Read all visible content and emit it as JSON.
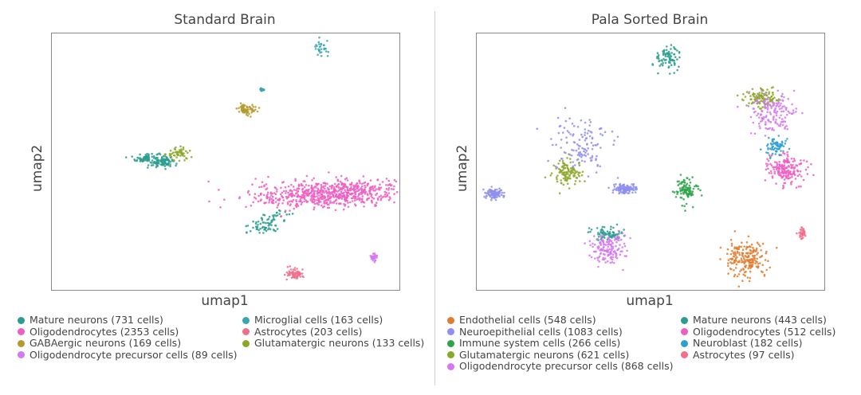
{
  "chart_data": [
    {
      "type": "scatter",
      "title": "Standard Brain",
      "xlabel": "umap1",
      "ylabel": "umap2",
      "grid": false,
      "legend_placement": "bottom",
      "series": [
        {
          "name": "Mature neurons (731 cells)",
          "color": "#2a9d8f",
          "clusters": [
            {
              "x": 5.5,
              "y": 8.2,
              "sx": 0.35,
              "sy": 0.2
            },
            {
              "x": 6.4,
              "y": 8.0,
              "sx": 0.3,
              "sy": 0.15
            },
            {
              "x": 12.5,
              "y": 4.2,
              "sx": 0.7,
              "sy": 0.25,
              "tilt": 0.45
            }
          ],
          "n": 240
        },
        {
          "name": "Microglial cells (163 cells)",
          "color": "#3aa6b2",
          "clusters": [
            {
              "x": 15.5,
              "y": 15.0,
              "sx": 0.2,
              "sy": 0.25
            },
            {
              "x": 12.1,
              "y": 12.5,
              "sx": 0.05,
              "sy": 0.05
            }
          ],
          "n": 60
        },
        {
          "name": "Oligodendrocytes (2353 cells)",
          "color": "#ee5ec2",
          "clusters": [
            {
              "x": 16.0,
              "y": 6.0,
              "sx": 2.2,
              "sy": 0.42,
              "tilt": 0.05
            }
          ],
          "n": 700
        },
        {
          "name": "Astrocytes (203 cells)",
          "color": "#f0708b",
          "clusters": [
            {
              "x": 14.0,
              "y": 1.0,
              "sx": 0.25,
              "sy": 0.18
            }
          ],
          "n": 70
        },
        {
          "name": "GABAergic neurons (169 cells)",
          "color": "#b49b2c",
          "clusters": [
            {
              "x": 11.2,
              "y": 11.3,
              "sx": 0.3,
              "sy": 0.18
            }
          ],
          "n": 65
        },
        {
          "name": "Glutamatergic neurons (133 cells)",
          "color": "#8aa827",
          "clusters": [
            {
              "x": 7.3,
              "y": 8.5,
              "sx": 0.35,
              "sy": 0.2
            }
          ],
          "n": 55
        },
        {
          "name": "Oligodendrocyte precursor cells (89 cells)",
          "color": "#d677f0",
          "clusters": [
            {
              "x": 18.5,
              "y": 2.0,
              "sx": 0.12,
              "sy": 0.12
            }
          ],
          "n": 30
        }
      ],
      "xlim": [
        0,
        20
      ],
      "ylim": [
        0,
        16
      ]
    },
    {
      "type": "scatter",
      "title": "Pala Sorted Brain",
      "xlabel": "umap1",
      "ylabel": "umap2",
      "grid": false,
      "legend_placement": "bottom",
      "series": [
        {
          "name": "Endothelial cells (548 cells)",
          "color": "#e07c2f",
          "clusters": [
            {
              "x": 15.5,
              "y": 2.0,
              "sx": 0.6,
              "sy": 0.6,
              "tilt": -0.9
            }
          ],
          "n": 200
        },
        {
          "name": "Mature neurons (443 cells)",
          "color": "#2a9d8f",
          "clusters": [
            {
              "x": 11.0,
              "y": 14.5,
              "sx": 0.35,
              "sy": 0.4
            },
            {
              "x": 7.5,
              "y": 3.5,
              "sx": 0.45,
              "sy": 0.2
            }
          ],
          "n": 160
        },
        {
          "name": "Neuroepithelial cells (1083 cells)",
          "color": "#8f8ff0",
          "clusters": [
            {
              "x": 6.0,
              "y": 9.0,
              "sx": 0.9,
              "sy": 0.8
            },
            {
              "x": 1.0,
              "y": 6.0,
              "sx": 0.25,
              "sy": 0.15
            },
            {
              "x": 8.5,
              "y": 6.3,
              "sx": 0.3,
              "sy": 0.15
            }
          ],
          "n": 380
        },
        {
          "name": "Oligodendrocytes (512 cells)",
          "color": "#ee5ec2",
          "clusters": [
            {
              "x": 17.8,
              "y": 7.5,
              "sx": 0.5,
              "sy": 0.45
            }
          ],
          "n": 180
        },
        {
          "name": "Immune system cells (266 cells)",
          "color": "#2ea34a",
          "clusters": [
            {
              "x": 12.0,
              "y": 6.2,
              "sx": 0.3,
              "sy": 0.4
            }
          ],
          "n": 100
        },
        {
          "name": "Neuroblast (182 cells)",
          "color": "#2e9fd1",
          "clusters": [
            {
              "x": 17.3,
              "y": 9.0,
              "sx": 0.35,
              "sy": 0.3
            }
          ],
          "n": 70
        },
        {
          "name": "Glutamatergic neurons (621 cells)",
          "color": "#8aa827",
          "clusters": [
            {
              "x": 5.2,
              "y": 7.3,
              "sx": 0.4,
              "sy": 0.4
            },
            {
              "x": 16.5,
              "y": 12.0,
              "sx": 0.5,
              "sy": 0.3
            }
          ],
          "n": 220
        },
        {
          "name": "Astrocytes (97 cells)",
          "color": "#f0708b",
          "clusters": [
            {
              "x": 18.7,
              "y": 3.5,
              "sx": 0.12,
              "sy": 0.2
            }
          ],
          "n": 35
        },
        {
          "name": "Oligodendrocyte precursor cells (868 cells)",
          "color": "#d677f0",
          "clusters": [
            {
              "x": 17.0,
              "y": 11.0,
              "sx": 0.6,
              "sy": 0.7
            },
            {
              "x": 7.5,
              "y": 2.5,
              "sx": 0.5,
              "sy": 0.5
            }
          ],
          "n": 300
        }
      ],
      "xlim": [
        0,
        20
      ],
      "ylim": [
        0,
        16
      ]
    }
  ]
}
